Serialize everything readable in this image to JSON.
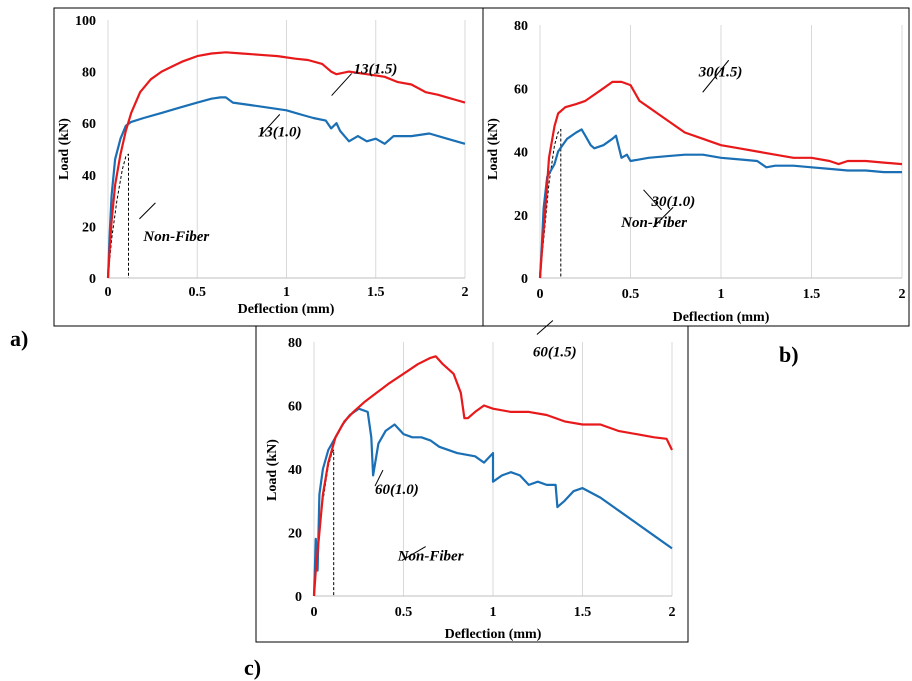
{
  "panel_labels": [
    "a)",
    "b)",
    "c)"
  ],
  "chart_data": [
    {
      "type": "line",
      "panel": "a)",
      "xlabel": "Deflection (mm)",
      "ylabel": "Load (kN)",
      "xlim": [
        0,
        2
      ],
      "ylim": [
        0,
        100
      ],
      "xticks": [
        "0",
        "0.5",
        "1",
        "1.5",
        "2"
      ],
      "yticks": [
        "0",
        "20",
        "40",
        "60",
        "80",
        "100"
      ],
      "grid": "vertical",
      "series": [
        {
          "name": "13(1.5)",
          "color": "#e8191b",
          "style": "solid",
          "x": [
            0,
            0.01,
            0.02,
            0.04,
            0.07,
            0.1,
            0.13,
            0.18,
            0.24,
            0.3,
            0.36,
            0.42,
            0.5,
            0.58,
            0.66,
            0.75,
            0.85,
            0.95,
            1.05,
            1.12,
            1.2,
            1.25,
            1.28,
            1.35,
            1.45,
            1.55,
            1.62,
            1.7,
            1.78,
            1.85,
            1.9,
            1.95,
            2.0
          ],
          "y": [
            0,
            12,
            22,
            36,
            48,
            57,
            64,
            72,
            77,
            80,
            82,
            84,
            86,
            87,
            87.5,
            87,
            86.5,
            86,
            85,
            84.5,
            83,
            80,
            79,
            80,
            79,
            78,
            76,
            75,
            72,
            71,
            70,
            69,
            68
          ]
        },
        {
          "name": "13(1.0)",
          "color": "#1a6fb5",
          "style": "solid",
          "x": [
            0,
            0.01,
            0.02,
            0.04,
            0.07,
            0.1,
            0.13,
            0.2,
            0.3,
            0.4,
            0.5,
            0.58,
            0.63,
            0.66,
            0.7,
            0.8,
            0.9,
            1.0,
            1.05,
            1.1,
            1.15,
            1.22,
            1.25,
            1.28,
            1.3,
            1.35,
            1.4,
            1.45,
            1.5,
            1.55,
            1.6,
            1.7,
            1.8,
            1.9,
            2.0
          ],
          "y": [
            0,
            18,
            32,
            46,
            54,
            59,
            60.5,
            62,
            64,
            66,
            68,
            69.5,
            70,
            70,
            68,
            67,
            66,
            65,
            64,
            63,
            62,
            61,
            58,
            60,
            57,
            53,
            55,
            53,
            54,
            52,
            55,
            55,
            56,
            54,
            52
          ]
        },
        {
          "name": "Non-Fiber",
          "color": "#000000",
          "style": "dashed",
          "x": [
            0,
            0.02,
            0.05,
            0.08,
            0.1,
            0.115,
            0.115
          ],
          "y": [
            0,
            15,
            30,
            42,
            47,
            48,
            0
          ]
        }
      ],
      "annotations": [
        {
          "text": "13(1.5)",
          "x": 1.32,
          "y": 80
        },
        {
          "text": "13(1.0)",
          "x": 1.22,
          "y": 58
        },
        {
          "text": "Non-Fiber",
          "x": 0.12,
          "y": 2
        }
      ]
    },
    {
      "type": "line",
      "panel": "b)",
      "xlabel": "Deflection (mm)",
      "ylabel": "Load (kN)",
      "xlim": [
        0,
        2
      ],
      "ylim": [
        0,
        80
      ],
      "xticks": [
        "0",
        "0.5",
        "1",
        "1.5",
        "2"
      ],
      "yticks": [
        "0",
        "20",
        "40",
        "60",
        "80"
      ],
      "grid": "vertical",
      "series": [
        {
          "name": "30(1.5)",
          "color": "#e8191b",
          "style": "solid",
          "x": [
            0,
            0.01,
            0.03,
            0.05,
            0.08,
            0.1,
            0.14,
            0.2,
            0.25,
            0.3,
            0.35,
            0.4,
            0.45,
            0.5,
            0.55,
            0.6,
            0.65,
            0.7,
            0.8,
            0.9,
            1.0,
            1.1,
            1.2,
            1.3,
            1.4,
            1.5,
            1.6,
            1.65,
            1.7,
            1.8,
            1.9,
            2.0
          ],
          "y": [
            0,
            8,
            22,
            38,
            48,
            52,
            54,
            55,
            56,
            58,
            60,
            62,
            62,
            61,
            56,
            54,
            52,
            50,
            46,
            44,
            42,
            41,
            40,
            39,
            38,
            38,
            37,
            36,
            37,
            37,
            36.5,
            36
          ]
        },
        {
          "name": "30(1.0)",
          "color": "#1a6fb5",
          "style": "solid",
          "x": [
            0,
            0.01,
            0.02,
            0.04,
            0.06,
            0.08,
            0.1,
            0.15,
            0.2,
            0.23,
            0.25,
            0.28,
            0.3,
            0.35,
            0.4,
            0.42,
            0.45,
            0.48,
            0.5,
            0.55,
            0.6,
            0.7,
            0.8,
            0.9,
            1.0,
            1.1,
            1.2,
            1.25,
            1.3,
            1.4,
            1.5,
            1.6,
            1.7,
            1.8,
            1.9,
            2.0
          ],
          "y": [
            0,
            10,
            22,
            32,
            34,
            36,
            40,
            44,
            46,
            47,
            45,
            42,
            41,
            42,
            44,
            45,
            38,
            39,
            37,
            37.5,
            38,
            38.5,
            39,
            39,
            38,
            37.5,
            37,
            35,
            35.5,
            35.5,
            35,
            34.5,
            34,
            34,
            33.5,
            33.5
          ]
        },
        {
          "name": "Non-Fiber",
          "color": "#000000",
          "style": "dashed",
          "x": [
            0,
            0.02,
            0.05,
            0.08,
            0.1,
            0.115,
            0.115
          ],
          "y": [
            0,
            12,
            30,
            42,
            46,
            47,
            0
          ]
        }
      ],
      "annotations": [
        {
          "text": "30(1.5)",
          "x": 0.7,
          "y": 60
        },
        {
          "text": "30(1.0)",
          "x": 0.55,
          "y": 26
        },
        {
          "text": "Non-Fiber",
          "x": 0.15,
          "y": 11
        }
      ]
    },
    {
      "type": "line",
      "panel": "c)",
      "xlabel": "Deflection (mm)",
      "ylabel": "Load (kN)",
      "xlim": [
        0,
        2
      ],
      "ylim": [
        0,
        80
      ],
      "xticks": [
        "0",
        "0.5",
        "1",
        "1.5",
        "2"
      ],
      "yticks": [
        "0",
        "20",
        "40",
        "60",
        "80"
      ],
      "grid": "vertical",
      "series": [
        {
          "name": "60(1.5)",
          "color": "#e8191b",
          "style": "solid",
          "x": [
            0,
            0.01,
            0.03,
            0.05,
            0.08,
            0.12,
            0.17,
            0.22,
            0.28,
            0.35,
            0.42,
            0.5,
            0.58,
            0.65,
            0.68,
            0.72,
            0.78,
            0.82,
            0.84,
            0.86,
            0.9,
            0.95,
            1.0,
            1.1,
            1.2,
            1.3,
            1.4,
            1.5,
            1.6,
            1.7,
            1.8,
            1.9,
            1.97,
            2.0
          ],
          "y": [
            0,
            8,
            20,
            32,
            42,
            50,
            55,
            58,
            61,
            64,
            67,
            70,
            73,
            75,
            75.5,
            73,
            70,
            64,
            56,
            56,
            58,
            60,
            59,
            58,
            58,
            57,
            55,
            54,
            54,
            52,
            51,
            50,
            49.5,
            46
          ]
        },
        {
          "name": "60(1.0)",
          "color": "#1a6fb5",
          "style": "solid",
          "x": [
            0,
            0.01,
            0.02,
            0.03,
            0.05,
            0.08,
            0.12,
            0.16,
            0.2,
            0.25,
            0.3,
            0.32,
            0.33,
            0.36,
            0.4,
            0.45,
            0.5,
            0.55,
            0.6,
            0.65,
            0.7,
            0.8,
            0.9,
            0.95,
            1.0,
            1.0,
            1.05,
            1.1,
            1.15,
            1.2,
            1.25,
            1.3,
            1.35,
            1.36,
            1.4,
            1.45,
            1.5,
            1.6,
            1.7,
            1.8,
            1.9,
            2.0
          ],
          "y": [
            0,
            18,
            8,
            32,
            40,
            46,
            50,
            54,
            57,
            59,
            58,
            50,
            38,
            48,
            52,
            54,
            51,
            50,
            50,
            49,
            47,
            45,
            44,
            42,
            45,
            36,
            38,
            39,
            38,
            35,
            36,
            35,
            35,
            28,
            30,
            33,
            34,
            31,
            27,
            23,
            19,
            15
          ]
        },
        {
          "name": "Non-Fiber",
          "color": "#000000",
          "style": "dashed",
          "x": [
            0,
            0.02,
            0.05,
            0.08,
            0.1,
            0.11,
            0.11
          ],
          "y": [
            0,
            15,
            30,
            41,
            45,
            46,
            0
          ]
        }
      ],
      "annotations": [
        {
          "text": "60(1.5)",
          "x": 1.1,
          "y": 66
        },
        {
          "text": "60(1.0)",
          "x": 0.62,
          "y": 34
        },
        {
          "text": "Non-Fiber",
          "x": 0.3,
          "y": 8
        }
      ]
    }
  ]
}
